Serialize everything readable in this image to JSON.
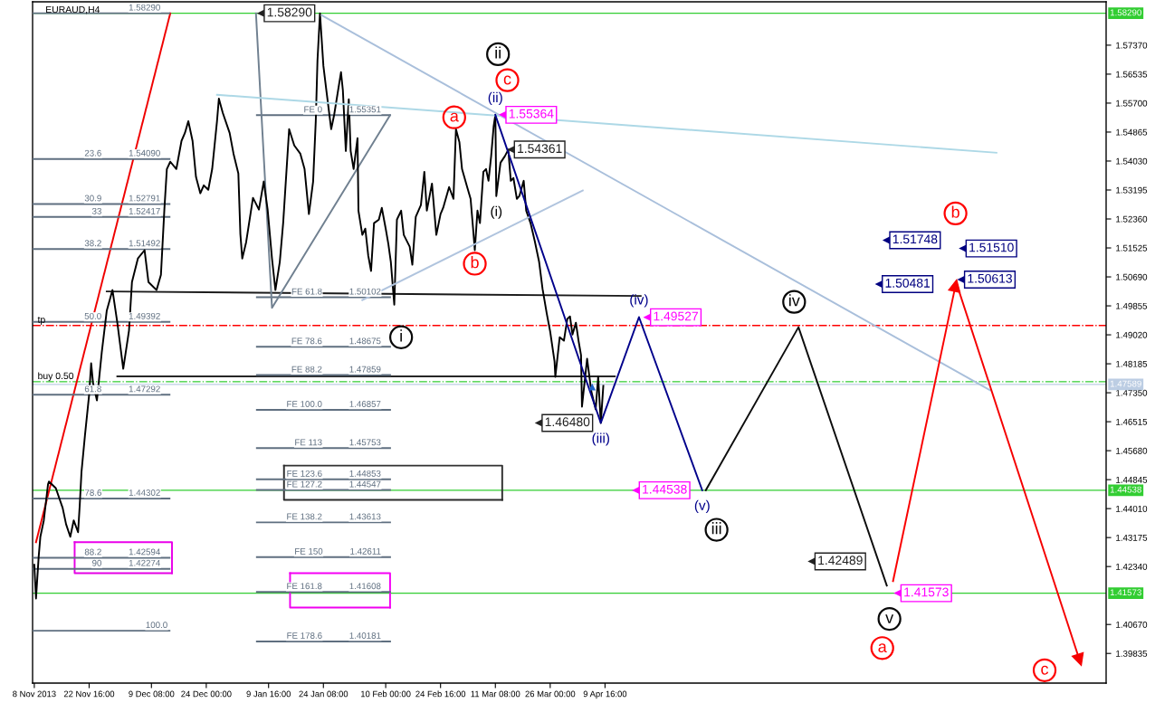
{
  "chart_data": {
    "type": "line",
    "title": "EURAUD,H4",
    "xlim": [
      "2013-11-07T13:00",
      "2014-08-21T17:00"
    ],
    "ylim": [
      1.3898,
      1.5862
    ],
    "xticks": [
      {
        "value": "2013-11-08T00:00",
        "label": "8 Nov 2013"
      },
      {
        "value": "2013-11-22T16:00",
        "label": "22 Nov 16:00"
      },
      {
        "value": "2013-12-09T08:00",
        "label": "9 Dec 08:00"
      },
      {
        "value": "2013-12-24T00:00",
        "label": "24 Dec 00:00"
      },
      {
        "value": "2014-01-09T16:00",
        "label": "9 Jan 16:00"
      },
      {
        "value": "2014-01-24T08:00",
        "label": "24 Jan 08:00"
      },
      {
        "value": "2014-02-10T00:00",
        "label": "10 Feb 00:00"
      },
      {
        "value": "2014-02-24T16:00",
        "label": "24 Feb 16:00"
      },
      {
        "value": "2014-03-11T08:00",
        "label": "11 Mar 08:00"
      },
      {
        "value": "2014-03-26T00:00",
        "label": "26 Mar 00:00"
      },
      {
        "value": "2014-04-09T16:00",
        "label": "9 Apr 16:00"
      }
    ],
    "yticks": [
      {
        "value": 1.5737,
        "label": "1.57370"
      },
      1.56535,
      {
        "value": 1.557,
        "label": "1.55700"
      },
      1.54865,
      {
        "value": 1.5403,
        "label": "1.54030"
      },
      1.53195,
      {
        "value": 1.5236,
        "label": "1.52360"
      },
      1.51525,
      {
        "value": 1.5069,
        "label": "1.50690"
      },
      1.49855,
      {
        "value": 1.4902,
        "label": "1.49020"
      },
      1.48185,
      {
        "value": 1.4735,
        "label": "1.47350"
      },
      1.46515,
      {
        "value": 1.4568,
        "label": "1.45680"
      },
      1.44845,
      {
        "value": 1.4401,
        "label": "1.44010"
      },
      1.43175,
      {
        "value": 1.4234,
        "label": "1.42340"
      },
      {
        "value": 1.4067,
        "label": "1.40670"
      },
      1.39835
    ],
    "series": [
      {
        "color": "#1a1a1a",
        "x": [
          "2013-11-27T09:00",
          "2014-04-19T05:00"
        ],
        "values": [
          1.5027,
          1.5014
        ]
      },
      {
        "color": "#262626",
        "x": [
          "2013-11-30T05:00",
          "2014-04-12T07:00"
        ],
        "values": [
          1.4782,
          1.4782
        ]
      },
      {
        "color": "#303030",
        "x": [
          "2014-01-13T19:00",
          "2014-03-13T04:00",
          "2014-03-13T04:00"
        ],
        "values": [
          1.4525,
          1.4525,
          1.4426
        ]
      },
      {
        "color": "#2b2b2b",
        "x": [
          "2014-03-13T04:00",
          "2014-01-13T19:00",
          "2014-01-13T19:00"
        ],
        "values": [
          1.4426,
          1.4426,
          1.4525
        ]
      },
      {
        "color": "#f500f5",
        "x": [
          "2014-01-15T10:00",
          "2014-02-11T04:00",
          "2014-02-11T04:00"
        ],
        "values": [
          1.4215,
          1.4215,
          1.4116
        ]
      },
      {
        "color": "#f000f0",
        "x": [
          "2014-02-11T04:00",
          "2014-01-15T10:00",
          "2014-01-15T10:00"
        ],
        "values": [
          1.4116,
          1.4116,
          1.4215
        ]
      },
      {
        "color": "#ea00ea",
        "x": [
          "2013-11-18T19:00",
          "2013-12-14T20:00",
          "2013-12-14T20:00"
        ],
        "values": [
          1.4304,
          1.4304,
          1.4215
        ]
      },
      {
        "color": "#e500e5",
        "x": [
          "2013-12-14T20:00",
          "2013-11-18T19:00",
          "2013-11-18T19:00"
        ],
        "values": [
          1.4215,
          1.4215,
          1.4304
        ]
      },
      {
        "color": "#f00000",
        "x": [
          "2013-11-08T11:00",
          "2013-12-14T09:00"
        ],
        "values": [
          1.4304,
          1.5829
        ]
      },
      {
        "color": "#5f6f80",
        "x": [
          "2013-11-07T13:00",
          "2013-12-14T04:00"
        ],
        "values": [
          1.5829,
          1.5829
        ],
        "value_labels": [
          null,
          "1.58290"
        ]
      },
      {
        "color": "#5f6f80",
        "name": "23.6",
        "x": [
          "2013-11-07T13:00",
          "2013-12-14T04:00"
        ],
        "values": [
          1.5409,
          1.5409
        ],
        "value_labels": [
          null,
          "1.54090"
        ]
      },
      {
        "color": "#5f6f80",
        "name": "30.9",
        "x": [
          "2013-11-07T13:00",
          "2013-12-14T04:00"
        ],
        "values": [
          1.52791,
          1.52791
        ],
        "value_labels": [
          null,
          "1.52791"
        ]
      },
      {
        "color": "#5f6f80",
        "name": "33",
        "x": [
          "2013-11-07T13:00",
          "2013-12-14T04:00"
        ],
        "values": [
          1.52417,
          1.52417
        ],
        "value_labels": [
          null,
          "1.52417"
        ]
      },
      {
        "color": "#5f6f80",
        "name": "38.2",
        "x": [
          "2013-11-07T13:00",
          "2013-12-14T04:00"
        ],
        "values": [
          1.51492,
          1.51492
        ],
        "value_labels": [
          null,
          "1.51492"
        ]
      },
      {
        "color": "#5f6f80",
        "name": "50.0",
        "x": [
          "2013-11-07T13:00",
          "2013-12-14T04:00"
        ],
        "values": [
          1.49392,
          1.49392
        ],
        "value_labels": [
          null,
          "1.49392"
        ]
      },
      {
        "color": "#5f6f80",
        "name": "61.8",
        "x": [
          "2013-11-07T13:00",
          "2013-12-14T04:00"
        ],
        "values": [
          1.47292,
          1.47292
        ],
        "value_labels": [
          null,
          "1.47292"
        ]
      },
      {
        "color": "#5f6f80",
        "name": "78.6",
        "x": [
          "2013-11-07T13:00",
          "2013-12-14T04:00"
        ],
        "values": [
          1.44302,
          1.44302
        ],
        "value_labels": [
          null,
          "1.44302"
        ]
      },
      {
        "color": "#5f6f80",
        "name": "88.2",
        "x": [
          "2013-11-07T13:00",
          "2013-12-14T04:00"
        ],
        "values": [
          1.42594,
          1.42594
        ],
        "value_labels": [
          null,
          "1.42594"
        ]
      },
      {
        "color": "#5f6f80",
        "name": "90",
        "x": [
          "2013-11-07T13:00",
          "2013-12-14T04:00"
        ],
        "values": [
          1.42274,
          1.42274
        ],
        "value_labels": [
          null,
          "1.42274"
        ]
      },
      {
        "color": "#5f6f80",
        "name": "100.0",
        "x": [
          "2013-11-07T13:00",
          "2013-12-14T04:00"
        ],
        "values": [
          1.4049,
          1.4049
        ]
      },
      {
        "color": "#5f6f80",
        "name": "FE 0",
        "x": [
          "2014-01-06T13:00",
          "2014-02-11T04:00"
        ],
        "values": [
          1.55351,
          1.55351
        ],
        "value_labels": [
          null,
          "1.55351"
        ]
      },
      {
        "color": "#5f6f80",
        "name": "FE 61.8",
        "x": [
          "2014-01-06T13:00",
          "2014-02-11T04:00"
        ],
        "values": [
          1.50102,
          1.50102
        ],
        "value_labels": [
          null,
          "1.50102"
        ]
      },
      {
        "color": "#5f6f80",
        "name": "FE 78.6",
        "x": [
          "2014-01-06T13:00",
          "2014-02-11T04:00"
        ],
        "values": [
          1.48675,
          1.48675
        ],
        "value_labels": [
          null,
          "1.48675"
        ]
      },
      {
        "color": "#5f6f80",
        "name": "FE 88.2",
        "x": [
          "2014-01-06T13:00",
          "2014-02-11T04:00"
        ],
        "values": [
          1.47859,
          1.47859
        ],
        "value_labels": [
          null,
          "1.47859"
        ]
      },
      {
        "color": "#5f6f80",
        "name": "FE 100.0",
        "x": [
          "2014-01-06T13:00",
          "2014-02-11T04:00"
        ],
        "values": [
          1.46857,
          1.46857
        ],
        "value_labels": [
          null,
          "1.46857"
        ]
      },
      {
        "color": "#5f6f80",
        "name": "FE 113",
        "x": [
          "2014-01-06T13:00",
          "2014-02-11T04:00"
        ],
        "values": [
          1.45753,
          1.45753
        ],
        "value_labels": [
          null,
          "1.45753"
        ]
      },
      {
        "color": "#5f6f80",
        "name": "FE 123.6",
        "x": [
          "2014-01-06T13:00",
          "2014-02-11T04:00"
        ],
        "values": [
          1.44853,
          1.44853
        ],
        "value_labels": [
          null,
          "1.44853"
        ]
      },
      {
        "color": "#5f6f80",
        "name": "FE 127.2",
        "x": [
          "2014-01-06T13:00",
          "2014-02-11T04:00"
        ],
        "values": [
          1.44547,
          1.44547
        ],
        "value_labels": [
          null,
          "1.44547"
        ]
      },
      {
        "color": "#5f6f80",
        "name": "FE 138.2",
        "x": [
          "2014-01-06T13:00",
          "2014-02-11T04:00"
        ],
        "values": [
          1.43613,
          1.43613
        ],
        "value_labels": [
          null,
          "1.43613"
        ]
      },
      {
        "color": "#5f6f80",
        "name": "FE 150",
        "x": [
          "2014-01-06T13:00",
          "2014-02-11T04:00"
        ],
        "values": [
          1.42611,
          1.42611
        ],
        "value_labels": [
          null,
          "1.42611"
        ]
      },
      {
        "color": "#5f6f80",
        "name": "FE 161.8",
        "x": [
          "2014-01-06T13:00",
          "2014-02-11T04:00"
        ],
        "values": [
          1.41608,
          1.41608
        ],
        "value_labels": [
          null,
          "1.41608"
        ]
      },
      {
        "color": "#5f6f80",
        "name": "FE 178.6",
        "x": [
          "2014-01-06T13:00",
          "2014-02-11T04:00"
        ],
        "values": [
          1.40181,
          1.40181
        ],
        "value_labels": [
          null,
          "1.40181"
        ]
      },
      {
        "color": "#708090",
        "x": [
          "2014-01-06T07:00",
          "2014-01-10T14:00",
          "2014-02-11T04:00"
        ],
        "values": [
          1.5829,
          1.498,
          1.5535
        ]
      },
      {
        "color": "#000000",
        "x": [
          "2013-11-08T00:00",
          "2013-11-08T11:00",
          "2013-11-09T04:00",
          "2013-11-09T15:00",
          "2013-11-10T13:00",
          "2013-11-11T16:00",
          "2013-11-11T22:00",
          "2013-11-13T18:00",
          "2013-11-15T14:00",
          "2013-11-16T12:00",
          "2013-11-17T15:00",
          "2013-11-18T13:00",
          "2013-11-19T17:00",
          "2013-11-20T04:00",
          "2013-11-20T15:00",
          "2013-11-21T13:00",
          "2013-11-22T16:00",
          "2013-11-23T05:00",
          "2013-11-23T17:00",
          "2013-11-24T18:00",
          "2013-11-26T01:00",
          "2013-11-27T09:00",
          "2013-11-28T22:00",
          "2013-11-30T05:00",
          "2013-12-01T19:00",
          "2013-12-03T08:00",
          "2013-12-04T03:00",
          "2013-12-05T17:00",
          "2013-12-07T12:00",
          "2013-12-08T13:00",
          "2013-12-10T17:00",
          "2013-12-11T21:00",
          "2013-12-12T19:00",
          "2013-12-13T11:00",
          "2013-12-14T09:00",
          "2013-12-16T00:00",
          "2013-12-17T09:00",
          "2013-12-18T07:00",
          "2013-12-19T05:00",
          "2013-12-20T08:00",
          "2013-12-21T06:00",
          "2013-12-22T10:00",
          "2013-12-23T08:00",
          "2013-12-24T13:00",
          "2013-12-25T14:00",
          "2013-12-26T21:00",
          "2013-12-27T09:00",
          "2013-12-28T10:00",
          "2013-12-30T06:00",
          "2013-12-31T07:00",
          "2014-01-01T14:00",
          "2014-01-02T03:00",
          "2014-01-02T15:00",
          "2014-01-03T16:00",
          "2014-01-05T12:00",
          "2014-01-07T02:00",
          "2014-01-08T09:00",
          "2014-01-09T10:00",
          "2014-01-10T14:00",
          "2014-01-11T12:00",
          "2014-01-12T16:00",
          "2014-01-13T14:00",
          "2014-01-15T04:00",
          "2014-01-16T13:00",
          "2014-01-18T04:00",
          "2014-01-19T07:00",
          "2014-01-20T11:00",
          "2014-01-21T14:00",
          "2014-01-22T07:00",
          "2014-01-22T18:00",
          "2014-01-23T10:00",
          "2014-01-24T08:00",
          "2014-01-25T03:00",
          "2014-01-26T10:00",
          "2014-01-27T05:00",
          "2014-01-29T01:00",
          "2014-01-29T13:00",
          "2014-01-30T08:00",
          "2014-01-31T03:00",
          "2014-01-31T15:00",
          "2014-02-01T10:00",
          "2014-02-02T11:00",
          "2014-02-02T17:00",
          "2014-02-03T18:00",
          "2014-02-04T13:00",
          "2014-02-05T08:00",
          "2014-02-06T02:00",
          "2014-02-06T21:00",
          "2014-02-08T04:00",
          "2014-02-08T23:00",
          "2014-02-10T00:00",
          "2014-02-10T17:00",
          "2014-02-11T09:00",
          "2014-02-12T07:00",
          "2014-02-13T00:00",
          "2014-02-14T03:00",
          "2014-02-14T20:00",
          "2014-02-16T10:00",
          "2014-02-17T03:00",
          "2014-02-18T01:00",
          "2014-02-19T10:00",
          "2014-02-20T08:00",
          "2014-02-21T00:00",
          "2014-02-22T09:00",
          "2014-02-23T13:00",
          "2014-02-24T16:00",
          "2014-02-25T09:00",
          "2014-02-26T23:00",
          "2014-02-28T03:00",
          "2014-02-28T19:00",
          "2014-03-01T17:00",
          "2014-03-02T10:00",
          "2014-03-03T19:00",
          "2014-03-04T17:00",
          "2014-03-05T09:00",
          "2014-03-05T20:00",
          "2014-03-06T13:00",
          "2014-03-07T05:00",
          "2014-03-08T03:00",
          "2014-03-08T20:00",
          "2014-03-09T12:00",
          "2014-03-10T05:00",
          "2014-03-10T21:00",
          "2014-03-11T08:00",
          "2014-03-11T14:00",
          "2014-03-12T17:00",
          "2014-03-13T21:00",
          "2014-03-14T19:00",
          "2014-03-15T11:00",
          "2014-03-16T04:00",
          "2014-03-17T02:00",
          "2014-03-17T18:00",
          "2014-03-18T22:00",
          "2014-03-19T14:00",
          "2014-03-20T18:00",
          "2014-03-21T21:00",
          "2014-03-23T01:00",
          "2014-03-23T23:00",
          "2014-03-25T02:00",
          "2014-03-26T00:00",
          "2014-03-27T04:00",
          "2014-03-27T09:00",
          "2014-03-28T13:00",
          "2014-03-29T16:00",
          "2014-03-30T14:00",
          "2014-03-31T07:00",
          "2014-03-31T23:00",
          "2014-04-01T21:00",
          "2014-04-02T14:00",
          "2014-04-03T06:00",
          "2014-04-03T12:00",
          "2014-04-04T21:00",
          "2014-04-06T00:00",
          "2014-04-07T04:00",
          "2014-04-07T20:00",
          "2014-04-08T13:00",
          "2014-04-09T05:00"
        ],
        "values": [
          1.4239,
          1.4142,
          1.4262,
          1.432,
          1.4367,
          1.4471,
          1.4479,
          1.446,
          1.4403,
          1.4356,
          1.432,
          1.4367,
          1.4333,
          1.4413,
          1.4507,
          1.4611,
          1.4729,
          1.482,
          1.4763,
          1.4713,
          1.4851,
          1.4971,
          1.5031,
          1.4937,
          1.4804,
          1.4914,
          1.5054,
          1.5122,
          1.5146,
          1.5054,
          1.5031,
          1.5075,
          1.5263,
          1.538,
          1.5401,
          1.538,
          1.5461,
          1.5484,
          1.5518,
          1.5461,
          1.5357,
          1.531,
          1.5333,
          1.532,
          1.538,
          1.5518,
          1.5583,
          1.5542,
          1.5484,
          1.5424,
          1.5367,
          1.5192,
          1.5122,
          1.5169,
          1.5297,
          1.5263,
          1.5344,
          1.5263,
          1.5122,
          1.5031,
          1.5112,
          1.5226,
          1.5495,
          1.5448,
          1.5424,
          1.538,
          1.525,
          1.5344,
          1.5518,
          1.5693,
          1.5829,
          1.5677,
          1.5607,
          1.5495,
          1.5536,
          1.5659,
          1.5607,
          1.5432,
          1.5581,
          1.5432,
          1.538,
          1.5469,
          1.526,
          1.519,
          1.5208,
          1.513,
          1.5086,
          1.5224,
          1.5234,
          1.5268,
          1.5208,
          1.5164,
          1.5112,
          1.4989,
          1.5234,
          1.526,
          1.519,
          1.5156,
          1.5104,
          1.5242,
          1.5276,
          1.5372,
          1.526,
          1.5338,
          1.519,
          1.525,
          1.5268,
          1.5328,
          1.5294,
          1.5495,
          1.5458,
          1.538,
          1.5328,
          1.5294,
          1.5208,
          1.5146,
          1.526,
          1.5224,
          1.5372,
          1.538,
          1.5346,
          1.5417,
          1.5503,
          1.5536,
          1.5302,
          1.5398,
          1.5417,
          1.5436,
          1.5346,
          1.5354,
          1.5294,
          1.5302,
          1.5346,
          1.526,
          1.5224,
          1.5172,
          1.5112,
          1.5034,
          1.4963,
          1.4911,
          1.4825,
          1.4781,
          1.4895,
          1.4885,
          1.4948,
          1.4955,
          1.4903,
          1.4937,
          1.4885,
          1.4843,
          1.4695,
          1.4833,
          1.4739,
          1.4687,
          1.4781,
          1.4648,
          1.4755
        ]
      },
      {
        "color": "#a9bfdb",
        "x": [
          "2014-01-23T21:00",
          "2014-07-21T17:00"
        ],
        "values": [
          1.5823,
          1.4742
        ]
      },
      {
        "color": "#b0c4de",
        "x": [
          "2014-02-03T18:00",
          "2014-04-03T17:00"
        ],
        "values": [
          1.5002,
          1.5318
        ]
      },
      {
        "color": "#add8e6",
        "x": [
          "2013-12-26T21:00",
          "2014-07-23T09:00"
        ],
        "values": [
          1.5594,
          1.5427
        ]
      },
      {
        "color": "#00008b",
        "x": [
          "2014-03-11T08:00",
          "2014-04-08T13:00",
          "2014-04-18T18:00",
          "2014-05-05T16:00"
        ],
        "values": [
          1.5536,
          1.4648,
          1.4953,
          1.4454
        ]
      },
      {
        "color": "#0d0d0d",
        "x": [
          "2014-05-06T15:00",
          "2014-05-31T10:00",
          "2014-06-24T01:00"
        ],
        "values": [
          1.4454,
          1.4924,
          1.4179
        ]
      },
      {
        "color": "#fa0000",
        "marker": "triangle",
        "x": [
          "2014-06-25T17:00",
          "2014-07-12T10:00"
        ],
        "values": [
          1.4192,
          1.5044
        ]
      },
      {
        "color": "#f50000",
        "marker": "triangle",
        "x": [
          "2014-07-12T21:00",
          "2014-08-14T14:00"
        ],
        "values": [
          1.5044,
          1.3965
        ]
      },
      {
        "type": "scatter",
        "color": "#1e64c8",
        "marker": "triangle",
        "x": [
          "2014-04-06T06:00"
        ],
        "values": [
          1.4752
        ]
      },
      {
        "type": "scatter",
        "color": "#080808",
        "marker": "circle",
        "x": [
          "2014-03-12T01:00",
          "2014-02-14T03:00",
          "2014-05-09T12:00",
          "2014-05-30T06:00",
          "2014-06-24T18:00"
        ],
        "values": [
          1.5711,
          1.4895,
          1.434,
          1.4997,
          1.4083
        ]
      },
      {
        "type": "scatter",
        "color": "#ff0000",
        "marker": "circle",
        "x": [
          "2014-02-28T08:00",
          "2014-03-14T13:00",
          "2014-03-05T20:00",
          "2014-07-12T10:00",
          "2014-06-22T20:00",
          "2014-08-05T06:00"
        ],
        "values": [
          1.5529,
          1.5636,
          1.5107,
          1.5252,
          1.3999,
          1.3935
        ]
      },
      {
        "type": "scatter",
        "color": "#222222",
        "marker": "triangle",
        "x": [
          "2014-01-07T16:00",
          "2014-03-15T14:00",
          "2014-03-23T00:00",
          "2014-06-04T00:00"
        ],
        "values": [
          1.5829,
          1.54361,
          1.4648,
          1.42489
        ],
        "value_labels": [
          "1.58290",
          "1.54361",
          "1.46480",
          "1.42489"
        ]
      },
      {
        "type": "scatter",
        "color": "#ff00ff",
        "marker": "triangle",
        "x": [
          "2014-03-13T08:00",
          "2014-04-21T00:00",
          "2014-04-18T00:00",
          "2014-06-27T00:00"
        ],
        "values": [
          1.55364,
          1.49527,
          1.44538,
          1.41573
        ],
        "value_labels": [
          "1.55364",
          "1.49527",
          "1.44538",
          "1.41573"
        ]
      },
      {
        "type": "scatter",
        "color": "#000080",
        "marker": "triangle",
        "x": [
          "2014-06-24T00:00",
          "2014-07-14T10:00",
          "2014-06-22T00:00",
          "2014-07-14T00:00"
        ],
        "values": [
          1.51748,
          1.5151,
          1.50481,
          1.50613
        ],
        "value_labels": [
          "1.51748",
          "1.51510",
          "1.50481",
          "1.50613"
        ]
      }
    ],
    "ref_lines": [
      {
        "axis": "y",
        "value": 1.5829,
        "label": "1.58290",
        "color": "#32cd32",
        "line_style": "solid"
      },
      {
        "axis": "y",
        "value": 1.44538,
        "label": "1.44538",
        "color": "#32cd32",
        "line_style": "solid"
      },
      {
        "axis": "y",
        "value": 1.41573,
        "label": "1.41573",
        "color": "#32cd32",
        "line_style": "solid"
      },
      {
        "axis": "y",
        "value": 1.47589,
        "label": "1.47589",
        "color": "#bccde3",
        "line_style": "solid"
      },
      {
        "axis": "y",
        "value": 1.4929,
        "label": "tp",
        "color": "#ff0000",
        "line_style": "dashdot"
      },
      {
        "axis": "y",
        "value": 1.4767,
        "label": "buy 0.50",
        "color": "#32cd32",
        "line_style": "dashdot"
      }
    ],
    "annotations": [
      {
        "text": "ii",
        "x": "2014-03-12T01:00",
        "y": 1.5711
      },
      {
        "text": "i",
        "x": "2014-02-14T03:00",
        "y": 1.4895
      },
      {
        "text": "iii",
        "x": "2014-05-09T12:00",
        "y": 1.434
      },
      {
        "text": "iv",
        "x": "2014-05-30T06:00",
        "y": 1.4997
      },
      {
        "text": "v",
        "x": "2014-06-24T18:00",
        "y": 1.4083
      },
      {
        "text": "a",
        "x": "2014-02-28T08:00",
        "y": 1.5529
      },
      {
        "text": "c",
        "x": "2014-03-14T13:00",
        "y": 1.5636
      },
      {
        "text": "b",
        "x": "2014-03-05T20:00",
        "y": 1.5107
      },
      {
        "text": "b",
        "x": "2014-07-12T10:00",
        "y": 1.5252
      },
      {
        "text": "a",
        "x": "2014-06-22T20:00",
        "y": 1.3999
      },
      {
        "text": "c",
        "x": "2014-08-05T06:00",
        "y": 1.3935
      },
      {
        "text": "(ii)",
        "x": "2014-03-11T08:00",
        "y": 1.5536
      },
      {
        "text": "(i)",
        "x": "2014-03-11T14:00",
        "y": 1.5302
      },
      {
        "text": "(iii)",
        "x": "2014-04-08T13:00",
        "y": 1.4648
      },
      {
        "text": "(iv)",
        "x": "2014-04-18T18:00",
        "y": 1.4953
      },
      {
        "text": "(v)",
        "x": "2014-05-05T16:00",
        "y": 1.4454
      }
    ]
  }
}
